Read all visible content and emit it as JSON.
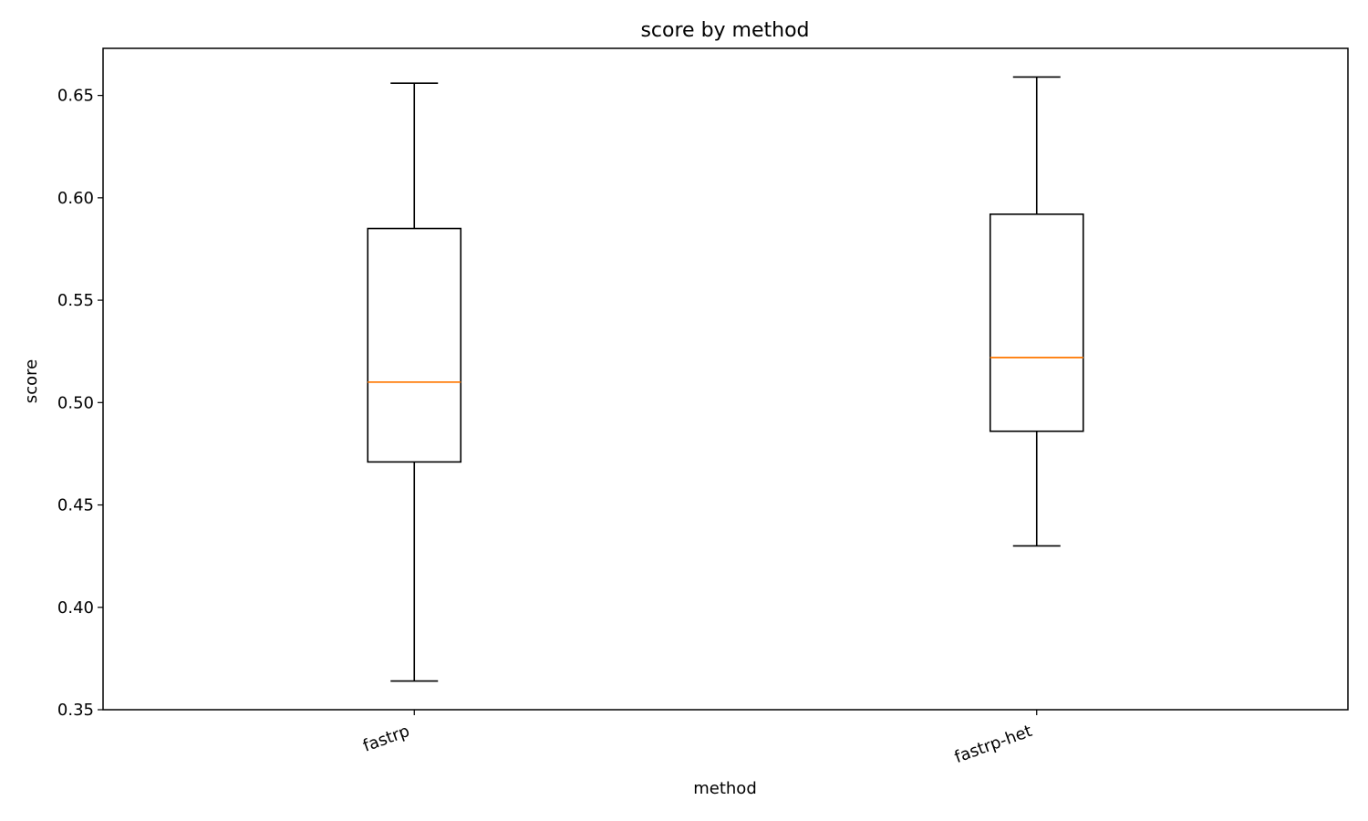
{
  "chart_data": {
    "type": "box",
    "title": "score by method",
    "xlabel": "method",
    "ylabel": "score",
    "ylim": [
      0.35,
      0.673
    ],
    "yticks": [
      0.35,
      0.4,
      0.45,
      0.5,
      0.55,
      0.6,
      0.65
    ],
    "ytick_labels": [
      "0.35",
      "0.40",
      "0.45",
      "0.50",
      "0.55",
      "0.60",
      "0.65"
    ],
    "categories": [
      "fastrp",
      "fastrp-het"
    ],
    "boxes": [
      {
        "category": "fastrp",
        "whisker_low": 0.364,
        "q1": 0.471,
        "median": 0.51,
        "q3": 0.585,
        "whisker_high": 0.656
      },
      {
        "category": "fastrp-het",
        "whisker_low": 0.43,
        "q1": 0.486,
        "median": 0.522,
        "q3": 0.592,
        "whisker_high": 0.659
      }
    ],
    "colors": {
      "box": "#000000",
      "median": "#ff7f0e"
    },
    "grid": false
  }
}
